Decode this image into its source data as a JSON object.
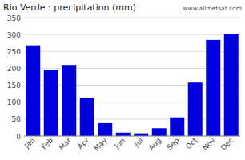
{
  "chart_data": {
    "type": "bar",
    "title": "Rio Verde : precipitation (mm)",
    "categories": [
      "Jan",
      "Feb",
      "Mar",
      "Apr",
      "May",
      "Jun",
      "Jul",
      "Aug",
      "Sep",
      "Oct",
      "Nov",
      "Dec"
    ],
    "values": [
      268,
      196,
      210,
      113,
      38,
      10,
      8,
      23,
      55,
      158,
      284,
      302
    ],
    "color": "#0000dd",
    "ylim": [
      0,
      350
    ],
    "yticks": [
      0,
      50,
      100,
      150,
      200,
      250,
      300,
      350
    ],
    "grid": true,
    "annotation": "www.allmetsat.com"
  }
}
